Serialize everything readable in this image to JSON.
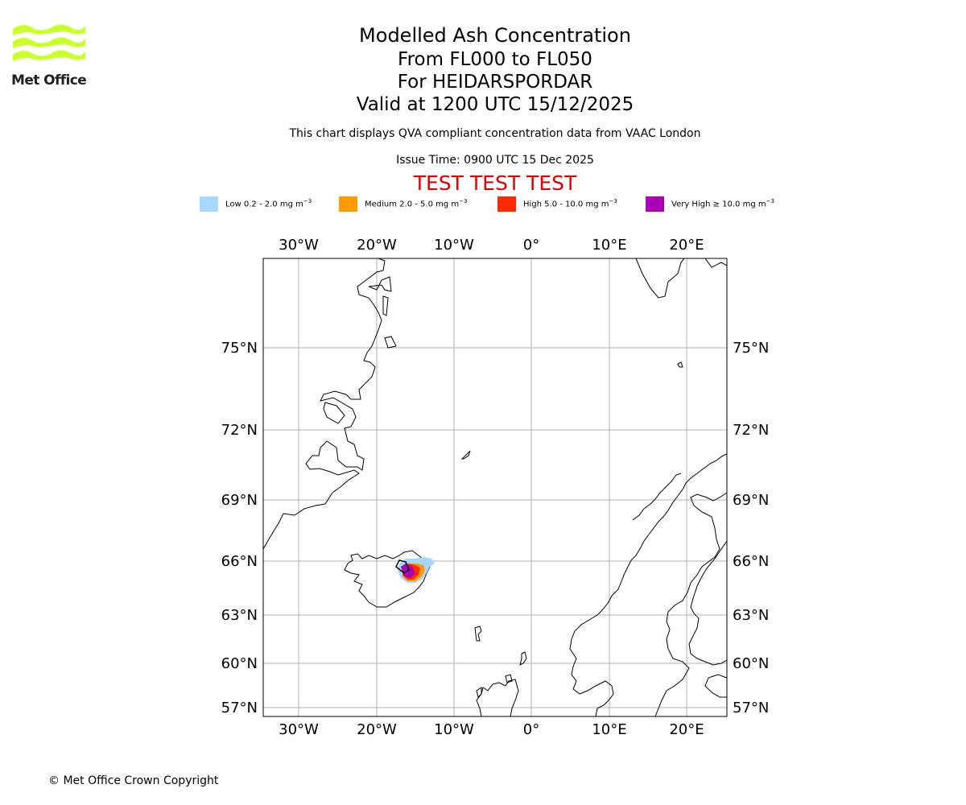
{
  "header": {
    "logo_text": "Met Office",
    "title": "Modelled Ash Concentration",
    "levels": "From FL000 to FL050",
    "volcano": "For HEIDARSPORDAR",
    "valid": "Valid at 1200 UTC 15/12/2025",
    "qva_note": "This chart displays QVA compliant concentration data from VAAC London",
    "issue_time": "Issue Time: 0900 UTC 15 Dec 2025",
    "test_banner": "TEST TEST TEST"
  },
  "legend": [
    {
      "label": "Low 0.2 - 2.0 mg m",
      "exponent": "−3",
      "color": "#a6d8ff"
    },
    {
      "label": "Medium 2.0 - 5.0 mg m",
      "exponent": "−3",
      "color": "#ff9a00"
    },
    {
      "label": "High 5.0 - 10.0 mg m",
      "exponent": "−3",
      "color": "#ff2a00"
    },
    {
      "label": "Very High ≥ 10.0 mg m",
      "exponent": "−3",
      "color": "#aa00b8"
    }
  ],
  "map": {
    "lon_ticks": [
      "30°W",
      "20°W",
      "10°W",
      "0°",
      "10°E",
      "20°E"
    ],
    "lat_ticks": [
      "75°N",
      "72°N",
      "69°N",
      "66°N",
      "63°N",
      "60°N",
      "57°N"
    ],
    "lon_values": [
      -30,
      -20,
      -10,
      0,
      10,
      20
    ],
    "lat_values": [
      75,
      72,
      69,
      66,
      63,
      60,
      57
    ],
    "lon_range": [
      -34.5,
      25
    ],
    "lat_range": [
      56.7,
      78.5
    ],
    "ash_source": {
      "name": "HEIDARSPORDAR",
      "lon": -16.1,
      "lat": 65.8
    }
  },
  "footer": {
    "copyright": "© Met Office Crown Copyright"
  },
  "colors": {
    "logo": "#c8ff2d",
    "test": "#e00000",
    "grid": "#b0b0b0"
  }
}
